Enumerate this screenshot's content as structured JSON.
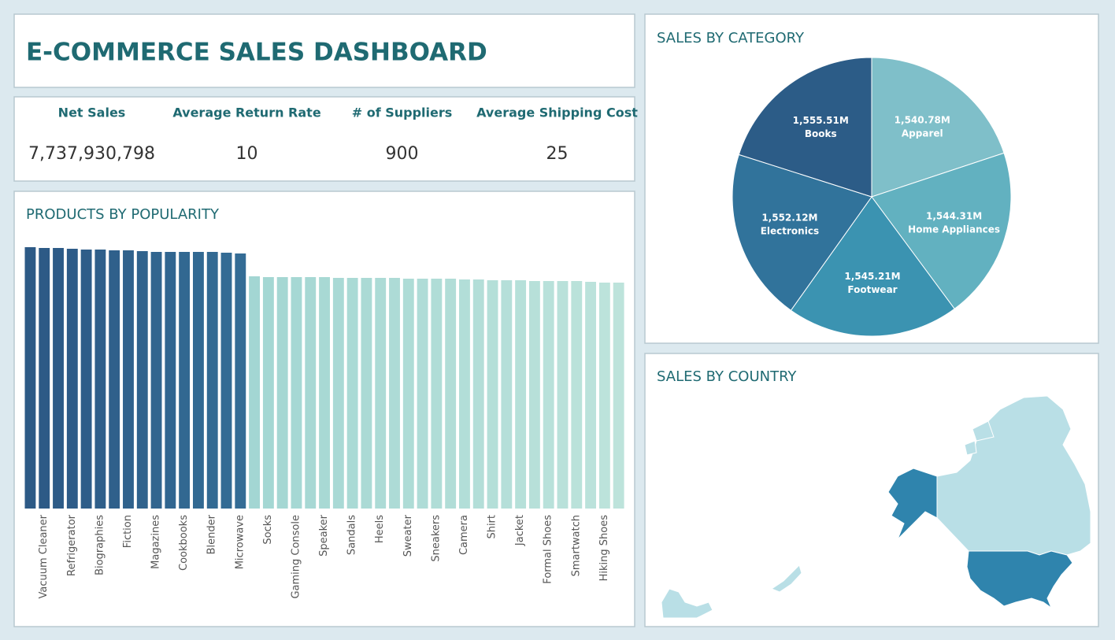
{
  "header": {
    "title": "E-COMMERCE SALES DASHBOARD"
  },
  "kpis": [
    {
      "label": "Net Sales",
      "value": "7,737,930,798"
    },
    {
      "label": "Average Return Rate",
      "value": "10"
    },
    {
      "label": "# of Suppliers",
      "value": "900"
    },
    {
      "label": "Average Shipping Cost",
      "value": "25"
    }
  ],
  "map": {
    "title": "SALES BY COUNTRY"
  },
  "chart_data": [
    {
      "type": "bar",
      "title": "PRODUCTS BY POPULARITY",
      "categories": [
        null,
        "Vacuum Cleaner",
        null,
        "Refrigerator",
        null,
        "Biographies",
        null,
        "Fiction",
        null,
        "Magazines",
        null,
        "Cookbooks",
        null,
        "Blender",
        null,
        "Microwave",
        null,
        "Socks",
        null,
        "Gaming Console",
        null,
        "Speaker",
        null,
        "Sandals",
        null,
        "Heels",
        null,
        "Sweater",
        null,
        "Sneakers",
        null,
        "Camera",
        null,
        "Shirt",
        null,
        "Jacket",
        null,
        "Formal Shoes",
        null,
        "Smartwatch",
        null,
        "Hiking Shoes",
        null
      ],
      "values": [
        332,
        331,
        331,
        330,
        329,
        329,
        328,
        328,
        327,
        326,
        326,
        326,
        326,
        326,
        325,
        324,
        295,
        294,
        294,
        294,
        294,
        294,
        293,
        293,
        293,
        293,
        293,
        292,
        292,
        292,
        292,
        291,
        291,
        290,
        290,
        290,
        289,
        289,
        289,
        289,
        288,
        287,
        287
      ],
      "colors": [
        "#2d5a86",
        "#2d5a86",
        "#2d5b87",
        "#2e5c88",
        "#2e5d89",
        "#2f5f8a",
        "#2f608b",
        "#30628c",
        "#30638d",
        "#31658f",
        "#316690",
        "#326891",
        "#326992",
        "#336a93",
        "#336b94",
        "#346c95",
        "#a3d6d3",
        "#a4d7d3",
        "#a5d7d3",
        "#a6d8d4",
        "#a7d8d4",
        "#a8d9d4",
        "#a9d9d5",
        "#aadad5",
        "#abdad5",
        "#acdbd6",
        "#addbd6",
        "#aedcd6",
        "#afdcd7",
        "#b0ddd7",
        "#b1ddd7",
        "#b2ded8",
        "#b3ded8",
        "#b4dfd8",
        "#b5dfd9",
        "#b6e0d9",
        "#b7e0d9",
        "#b8e1da",
        "#b9e1da",
        "#bae2da",
        "#bbe2db",
        "#bce3db",
        "#bde3db"
      ],
      "ylim": [
        0,
        346
      ]
    },
    {
      "type": "pie",
      "title": "SALES BY CATEGORY",
      "categories": [
        "Apparel",
        "Home Appliances",
        "Footwear",
        "Electronics",
        "Books"
      ],
      "values": [
        1540.78,
        1544.31,
        1545.21,
        1552.12,
        1555.51
      ],
      "value_labels": [
        "1,540.78M",
        "1,544.31M",
        "1,545.21M",
        "1,552.12M",
        "1,555.51M"
      ],
      "colors": [
        "#7fbfc9",
        "#62b1c0",
        "#3b93b1",
        "#31739b",
        "#2c5c87"
      ]
    }
  ]
}
